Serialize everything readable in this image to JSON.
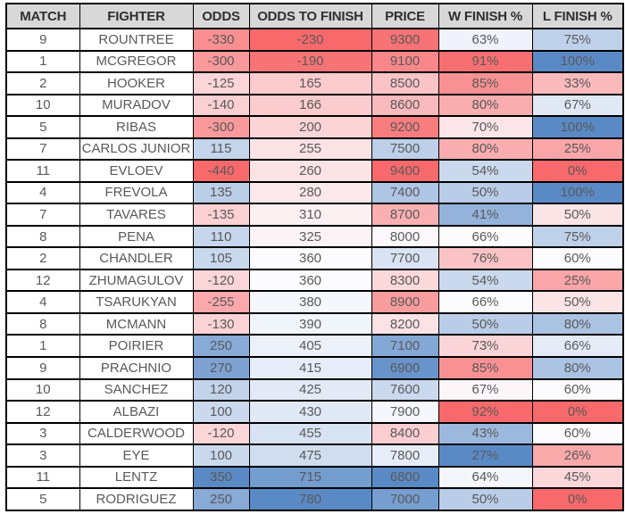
{
  "table": {
    "columns": [
      {
        "key": "match",
        "label": "MATCH"
      },
      {
        "key": "fighter",
        "label": "FIGHTER"
      },
      {
        "key": "odds",
        "label": "ODDS"
      },
      {
        "key": "odds_to_finish",
        "label": "ODDS TO FINISH"
      },
      {
        "key": "price",
        "label": "PRICE"
      },
      {
        "key": "w_finish",
        "label": "W FINISH %"
      },
      {
        "key": "l_finish",
        "label": "L FINISH %"
      }
    ],
    "rows": [
      {
        "match": 9,
        "fighter": "ROUNTREE",
        "odds": -330,
        "odds_to_finish": -230,
        "price": 9300,
        "w_finish": "63%",
        "l_finish": "75%"
      },
      {
        "match": 1,
        "fighter": "MCGREGOR",
        "odds": -300,
        "odds_to_finish": -190,
        "price": 9100,
        "w_finish": "91%",
        "l_finish": "100%"
      },
      {
        "match": 2,
        "fighter": "HOOKER",
        "odds": -125,
        "odds_to_finish": 165,
        "price": 8500,
        "w_finish": "85%",
        "l_finish": "33%"
      },
      {
        "match": 10,
        "fighter": "MURADOV",
        "odds": -140,
        "odds_to_finish": 166,
        "price": 8600,
        "w_finish": "80%",
        "l_finish": "67%"
      },
      {
        "match": 5,
        "fighter": "RIBAS",
        "odds": -300,
        "odds_to_finish": 200,
        "price": 9200,
        "w_finish": "70%",
        "l_finish": "100%"
      },
      {
        "match": 7,
        "fighter": "CARLOS JUNIOR",
        "odds": 115,
        "odds_to_finish": 255,
        "price": 7500,
        "w_finish": "80%",
        "l_finish": "25%"
      },
      {
        "match": 11,
        "fighter": "EVLOEV",
        "odds": -440,
        "odds_to_finish": 260,
        "price": 9400,
        "w_finish": "54%",
        "l_finish": "0%"
      },
      {
        "match": 4,
        "fighter": "FREVOLA",
        "odds": 135,
        "odds_to_finish": 280,
        "price": 7400,
        "w_finish": "50%",
        "l_finish": "100%"
      },
      {
        "match": 7,
        "fighter": "TAVARES",
        "odds": -135,
        "odds_to_finish": 310,
        "price": 8700,
        "w_finish": "41%",
        "l_finish": "50%"
      },
      {
        "match": 8,
        "fighter": "PENA",
        "odds": 110,
        "odds_to_finish": 325,
        "price": 8000,
        "w_finish": "66%",
        "l_finish": "75%"
      },
      {
        "match": 2,
        "fighter": "CHANDLER",
        "odds": 105,
        "odds_to_finish": 360,
        "price": 7700,
        "w_finish": "76%",
        "l_finish": "60%"
      },
      {
        "match": 12,
        "fighter": "ZHUMAGULOV",
        "odds": -120,
        "odds_to_finish": 360,
        "price": 8300,
        "w_finish": "54%",
        "l_finish": "25%"
      },
      {
        "match": 4,
        "fighter": "TSARUKYAN",
        "odds": -255,
        "odds_to_finish": 380,
        "price": 8900,
        "w_finish": "66%",
        "l_finish": "50%"
      },
      {
        "match": 8,
        "fighter": "MCMANN",
        "odds": -130,
        "odds_to_finish": 390,
        "price": 8200,
        "w_finish": "50%",
        "l_finish": "80%"
      },
      {
        "match": 1,
        "fighter": "POIRIER",
        "odds": 250,
        "odds_to_finish": 405,
        "price": 7100,
        "w_finish": "73%",
        "l_finish": "66%"
      },
      {
        "match": 9,
        "fighter": "PRACHNIO",
        "odds": 270,
        "odds_to_finish": 415,
        "price": 6900,
        "w_finish": "85%",
        "l_finish": "80%"
      },
      {
        "match": 10,
        "fighter": "SANCHEZ",
        "odds": 120,
        "odds_to_finish": 425,
        "price": 7600,
        "w_finish": "67%",
        "l_finish": "60%"
      },
      {
        "match": 12,
        "fighter": "ALBAZI",
        "odds": 100,
        "odds_to_finish": 430,
        "price": 7900,
        "w_finish": "92%",
        "l_finish": "0%"
      },
      {
        "match": 3,
        "fighter": "CALDERWOOD",
        "odds": -120,
        "odds_to_finish": 455,
        "price": 8400,
        "w_finish": "43%",
        "l_finish": "60%"
      },
      {
        "match": 3,
        "fighter": "EYE",
        "odds": 100,
        "odds_to_finish": 475,
        "price": 7800,
        "w_finish": "27%",
        "l_finish": "26%"
      },
      {
        "match": 11,
        "fighter": "LENTZ",
        "odds": 350,
        "odds_to_finish": 715,
        "price": 6800,
        "w_finish": "64%",
        "l_finish": "45%"
      },
      {
        "match": 5,
        "fighter": "RODRIGUEZ",
        "odds": 250,
        "odds_to_finish": 780,
        "price": 7000,
        "w_finish": "50%",
        "l_finish": "0%"
      }
    ],
    "colors": {
      "header_bg": "#D8D8D8",
      "header_text": "#2F2F2F",
      "body_text": "#595959",
      "border": "#000000",
      "scale_red": "#F8696B",
      "scale_white": "#FCFCFF",
      "scale_blue": "#5A8AC6"
    },
    "color_scales": {
      "odds": {
        "min": -440,
        "mid": -10,
        "max": 350,
        "low": "red",
        "high": "blue"
      },
      "odds_to_finish": {
        "min": -230,
        "mid": 360,
        "max": 780,
        "low": "red",
        "high": "blue"
      },
      "price": {
        "min": 6800,
        "mid": 7950,
        "max": 9400,
        "low": "blue",
        "high": "red"
      },
      "w_finish": {
        "min": 27,
        "mid": 66,
        "max": 92,
        "low": "blue",
        "high": "red"
      },
      "l_finish": {
        "min": 0,
        "mid": 60,
        "max": 100,
        "low": "red",
        "high": "blue"
      }
    }
  }
}
